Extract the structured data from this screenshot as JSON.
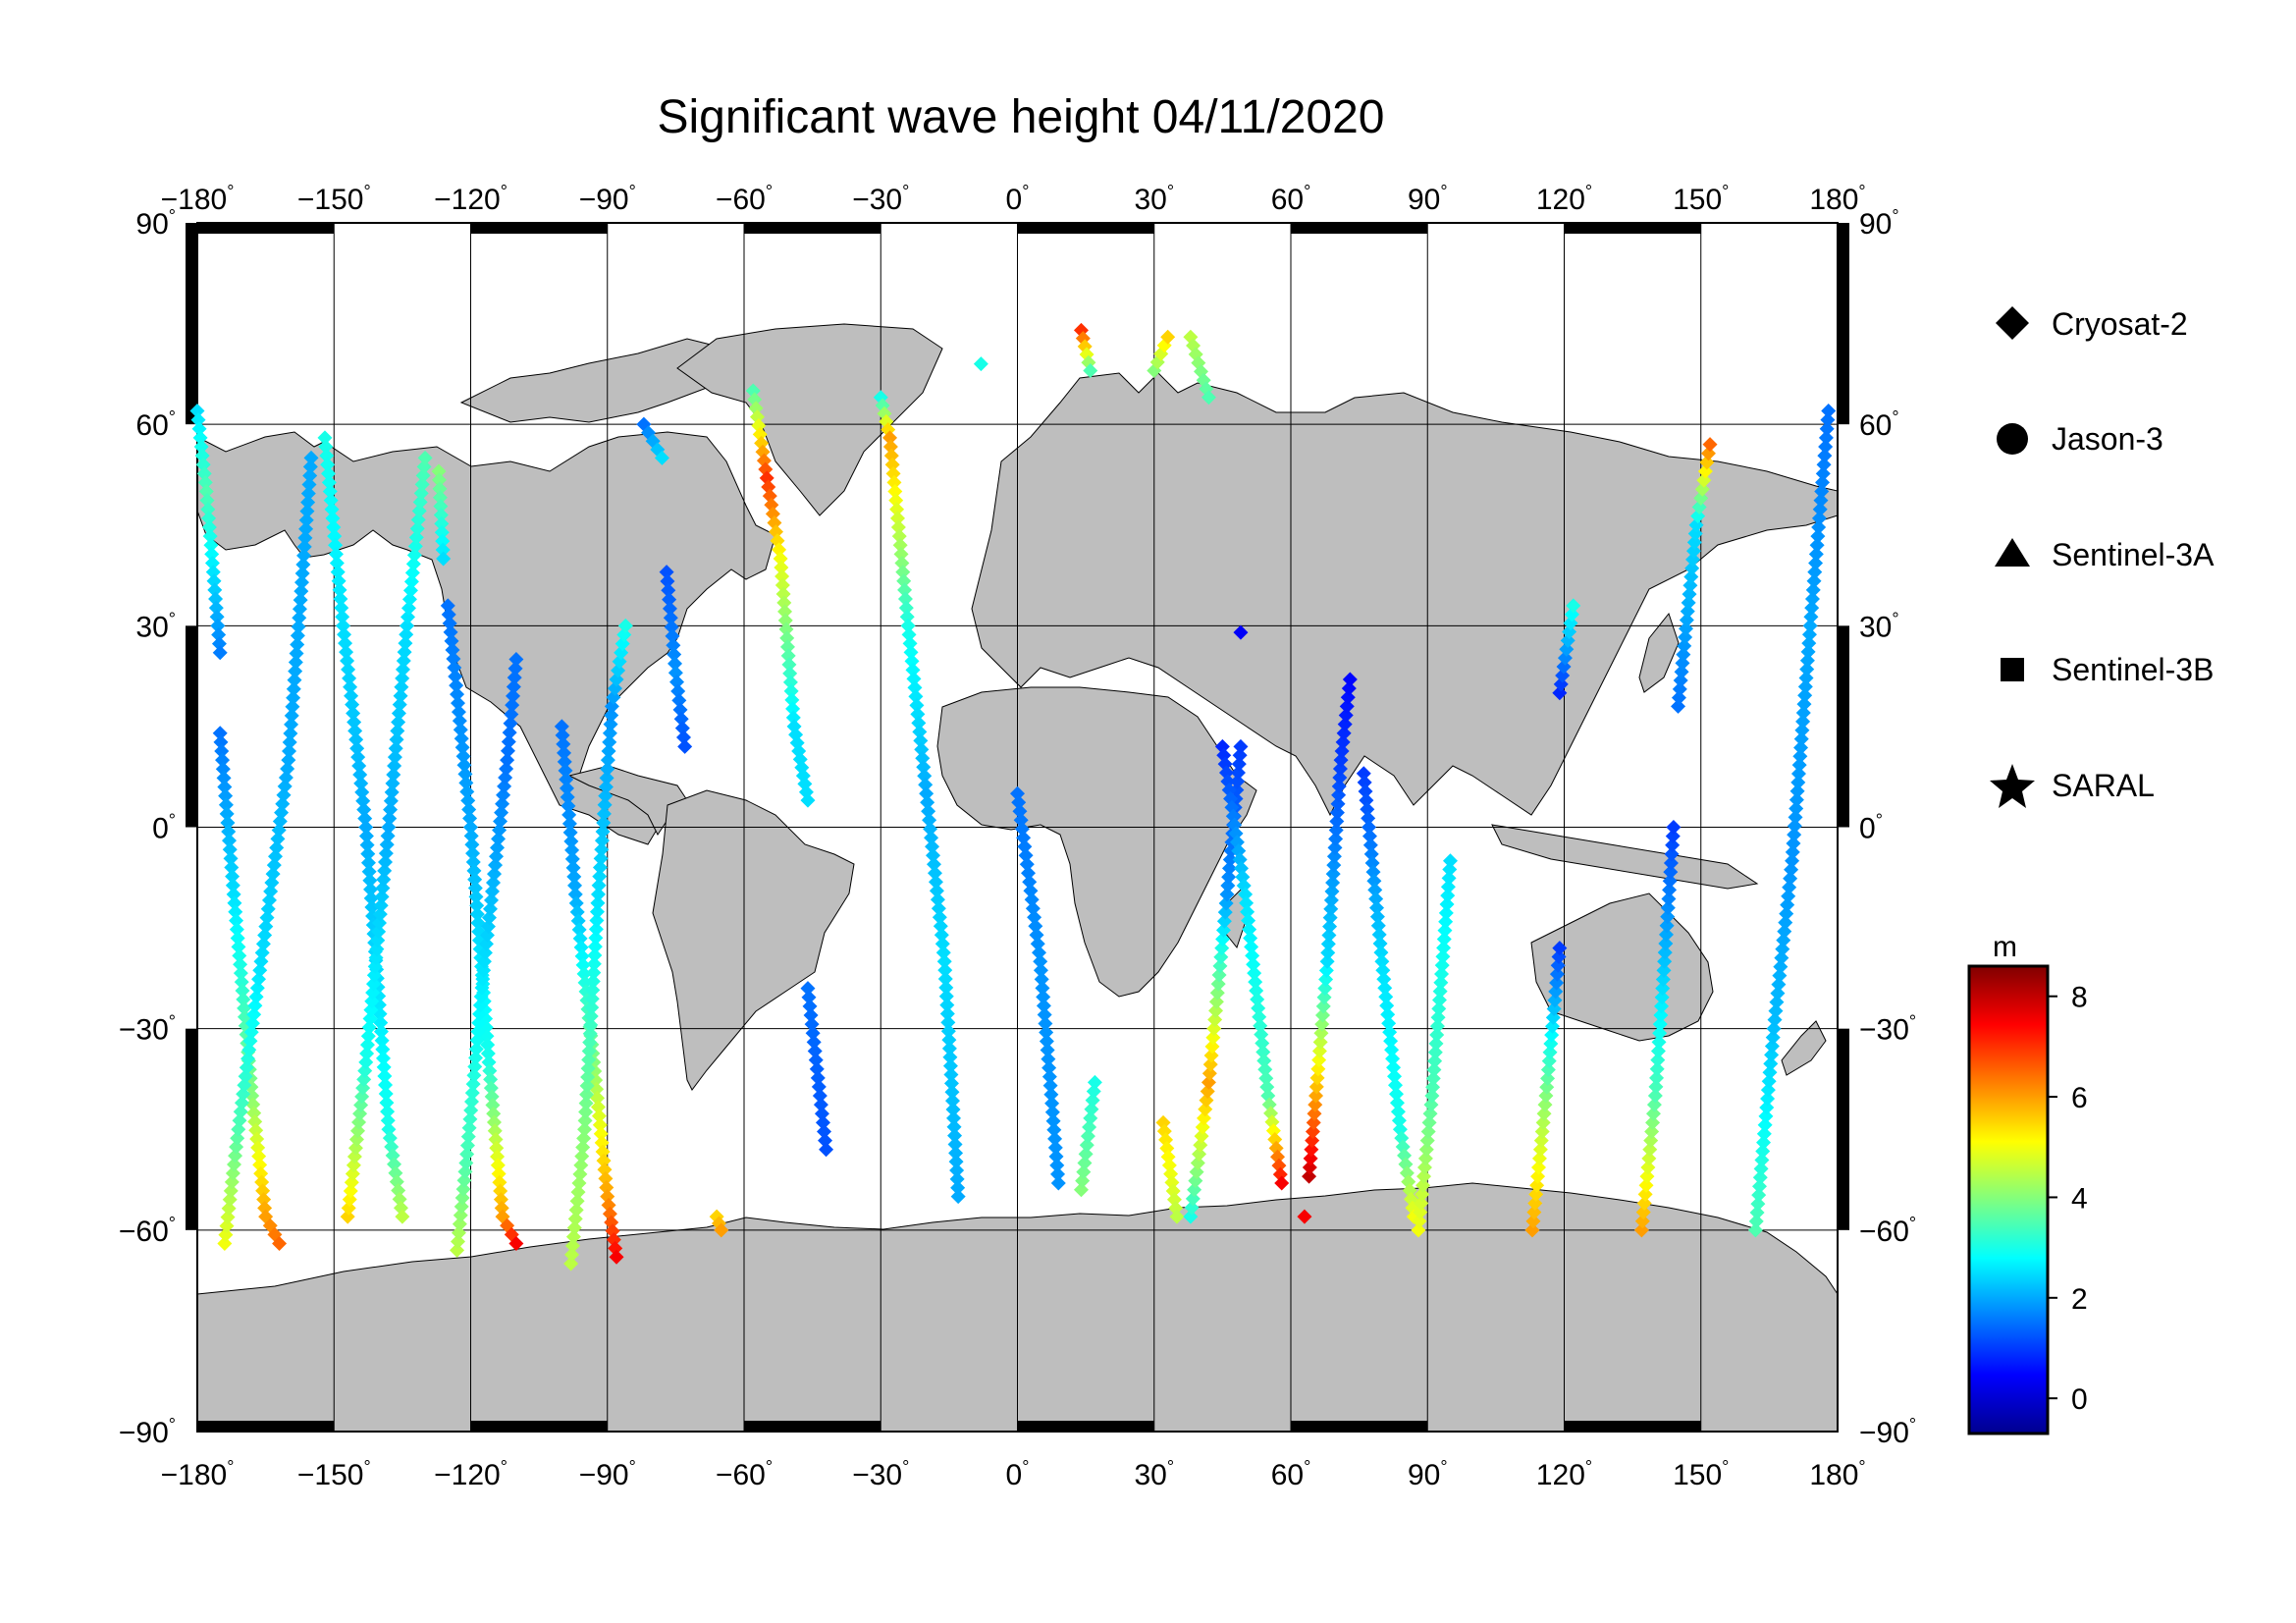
{
  "title": "Significant wave height 04/11/2020",
  "map": {
    "projection": "equirectangular",
    "lon_range": [
      -180,
      180
    ],
    "lat_range": [
      -90,
      90
    ],
    "lon_ticks": [
      "-180",
      "-150",
      "-120",
      "-90",
      "-60",
      "-30",
      "0",
      "30",
      "60",
      "90",
      "120",
      "150",
      "180"
    ],
    "lat_ticks": [
      "90",
      "60",
      "30",
      "0",
      "-30",
      "-60",
      "-90"
    ],
    "gridlines": true,
    "land_color": "#bebebe",
    "ocean_color": "#ffffff"
  },
  "legend": {
    "items": [
      {
        "label": "Cryosat-2",
        "marker": "diamond"
      },
      {
        "label": "Jason-3",
        "marker": "circle"
      },
      {
        "label": "Sentinel-3A",
        "marker": "triangle"
      },
      {
        "label": "Sentinel-3B",
        "marker": "square"
      },
      {
        "label": "SARAL",
        "marker": "star"
      }
    ]
  },
  "colorbar": {
    "unit": "m",
    "range": [
      -0.7,
      8.6
    ],
    "ticks": [
      "0",
      "2",
      "4",
      "6",
      "8"
    ],
    "colormap": "jet"
  },
  "tracks": [
    {
      "satellite": "Cryosat-2",
      "points": [
        [
          -180,
          62,
          2.5
        ],
        [
          -178,
          50,
          3.5
        ],
        [
          -175,
          26,
          1.6
        ]
      ]
    },
    {
      "satellite": "Cryosat-2",
      "points": [
        [
          -175,
          14,
          1.5
        ],
        [
          -172,
          -10,
          2.5
        ],
        [
          -168,
          -40,
          4
        ],
        [
          -165,
          -58,
          6
        ],
        [
          -162,
          -62,
          6.5
        ]
      ]
    },
    {
      "satellite": "Cryosat-2",
      "points": [
        [
          -174,
          -62,
          5
        ],
        [
          -171,
          -45,
          3.5
        ],
        [
          -166,
          -20,
          2.5
        ],
        [
          -160,
          10,
          2
        ],
        [
          -155,
          55,
          2
        ]
      ]
    },
    {
      "satellite": "Cryosat-2",
      "points": [
        [
          -152,
          58,
          3
        ],
        [
          -148,
          30,
          2.5
        ],
        [
          -143,
          0,
          2
        ],
        [
          -138,
          -45,
          3
        ],
        [
          -135,
          -58,
          4.5
        ]
      ]
    },
    {
      "satellite": "Cryosat-2",
      "points": [
        [
          -147,
          -58,
          5.5
        ],
        [
          -143,
          -35,
          3
        ],
        [
          -138,
          0,
          2
        ],
        [
          -134,
          30,
          2.5
        ],
        [
          -130,
          55,
          3.5
        ]
      ]
    },
    {
      "satellite": "Cryosat-2",
      "points": [
        [
          -127,
          53,
          4
        ],
        [
          -126,
          40,
          2.5
        ]
      ]
    },
    {
      "satellite": "Cryosat-2",
      "points": [
        [
          -125,
          33,
          1.5
        ],
        [
          -120,
          0,
          2
        ],
        [
          -116,
          -35,
          3
        ],
        [
          -113,
          -58,
          6
        ],
        [
          -110,
          -62,
          7.5
        ]
      ]
    },
    {
      "satellite": "Cryosat-2",
      "points": [
        [
          -123,
          -63,
          4.5
        ],
        [
          -121,
          -50,
          3.5
        ],
        [
          -117,
          -20,
          2.5
        ],
        [
          -112,
          10,
          1.5
        ],
        [
          -110,
          25,
          1.5
        ]
      ]
    },
    {
      "satellite": "Cryosat-2",
      "points": [
        [
          -100,
          15,
          1.5
        ],
        [
          -97,
          -10,
          2
        ],
        [
          -93,
          -35,
          4
        ],
        [
          -90,
          -55,
          6
        ],
        [
          -88,
          -64,
          7.5
        ]
      ]
    },
    {
      "satellite": "Cryosat-2",
      "points": [
        [
          -98,
          -65,
          4.5
        ],
        [
          -95,
          -45,
          4
        ],
        [
          -92,
          -10,
          2.5
        ],
        [
          -89,
          18,
          1.8
        ],
        [
          -86,
          30,
          3
        ]
      ]
    },
    {
      "satellite": "Cryosat-2",
      "points": [
        [
          -77,
          38,
          1.2
        ],
        [
          -75,
          23,
          1.8
        ],
        [
          -73,
          12,
          1.2
        ]
      ]
    },
    {
      "satellite": "Cryosat-2",
      "points": [
        [
          -58,
          65,
          3.5
        ],
        [
          -55,
          52,
          7
        ],
        [
          -52,
          40,
          5
        ],
        [
          -49,
          15,
          2.5
        ],
        [
          -46,
          4,
          2.5
        ]
      ]
    },
    {
      "satellite": "Cryosat-2",
      "points": [
        [
          -46,
          -24,
          1.5
        ],
        [
          -42,
          -48,
          1.2
        ]
      ]
    },
    {
      "satellite": "Cryosat-2",
      "points": [
        [
          -30,
          64,
          3
        ],
        [
          -28,
          58,
          6
        ],
        [
          -24,
          30,
          3
        ],
        [
          -20,
          5,
          2
        ],
        [
          -16,
          -20,
          2.5
        ],
        [
          -13,
          -55,
          2
        ]
      ]
    },
    {
      "satellite": "Cryosat-2",
      "points": [
        [
          -66,
          -58,
          5.5
        ],
        [
          -65,
          -60,
          6
        ]
      ]
    },
    {
      "satellite": "Cryosat-2",
      "points": [
        [
          -82,
          60,
          1.5
        ],
        [
          -78,
          55,
          2.5
        ]
      ]
    },
    {
      "satellite": "Cryosat-2",
      "points": [
        [
          0,
          5,
          1.5
        ],
        [
          5,
          -20,
          1.8
        ],
        [
          9,
          -53,
          1.8
        ]
      ]
    },
    {
      "satellite": "Cryosat-2",
      "points": [
        [
          14,
          -54,
          4
        ],
        [
          17,
          -38,
          3
        ]
      ]
    },
    {
      "satellite": "Cryosat-2",
      "points": [
        [
          14,
          74,
          7
        ],
        [
          16,
          68,
          3.5
        ]
      ]
    },
    {
      "satellite": "Cryosat-2",
      "points": [
        [
          30,
          68,
          4
        ],
        [
          33,
          73,
          5.5
        ]
      ]
    },
    {
      "satellite": "Cryosat-2",
      "points": [
        [
          38,
          73,
          4.5
        ],
        [
          42,
          64,
          3.5
        ]
      ]
    },
    {
      "satellite": "Cryosat-2",
      "points": [
        [
          -8,
          69,
          3
        ]
      ]
    },
    {
      "satellite": "Cryosat-2",
      "points": [
        [
          32,
          -44,
          5.5
        ],
        [
          35,
          -58,
          4.5
        ]
      ]
    },
    {
      "satellite": "Cryosat-2",
      "points": [
        [
          38,
          -58,
          3
        ],
        [
          42,
          -38,
          6
        ],
        [
          46,
          -10,
          1.8
        ],
        [
          49,
          12,
          1
        ]
      ]
    },
    {
      "satellite": "Cryosat-2",
      "points": [
        [
          45,
          12,
          0.8
        ],
        [
          50,
          -10,
          2.5
        ],
        [
          55,
          -40,
          3.5
        ],
        [
          58,
          -53,
          7.5
        ]
      ]
    },
    {
      "satellite": "Cryosat-2",
      "points": [
        [
          64,
          -52,
          8
        ],
        [
          68,
          -20,
          2.5
        ],
        [
          71,
          10,
          1
        ],
        [
          73,
          22,
          0.5
        ]
      ]
    },
    {
      "satellite": "Cryosat-2",
      "points": [
        [
          76,
          8,
          1
        ],
        [
          80,
          -20,
          2.5
        ],
        [
          84,
          -45,
          3
        ],
        [
          87,
          -58,
          5
        ]
      ]
    },
    {
      "satellite": "Cryosat-2",
      "points": [
        [
          88,
          -60,
          5
        ],
        [
          91,
          -40,
          3.5
        ],
        [
          95,
          -5,
          2.5
        ]
      ]
    },
    {
      "satellite": "Cryosat-2",
      "points": [
        [
          49,
          29,
          0.4
        ]
      ]
    },
    {
      "satellite": "Cryosat-2",
      "points": [
        [
          63,
          -58,
          7.5
        ]
      ]
    },
    {
      "satellite": "Cryosat-2",
      "points": [
        [
          113,
          -60,
          6
        ],
        [
          116,
          -40,
          4
        ],
        [
          119,
          -18,
          1
        ]
      ]
    },
    {
      "satellite": "Cryosat-2",
      "points": [
        [
          119,
          20,
          0.8
        ],
        [
          122,
          33,
          3
        ]
      ]
    },
    {
      "satellite": "Cryosat-2",
      "points": [
        [
          137,
          -60,
          6
        ],
        [
          140,
          -40,
          3.5
        ],
        [
          144,
          0,
          1
        ]
      ]
    },
    {
      "satellite": "Cryosat-2",
      "points": [
        [
          145,
          18,
          1.5
        ],
        [
          149,
          45,
          2.5
        ],
        [
          152,
          57,
          6.5
        ]
      ]
    },
    {
      "satellite": "Cryosat-2",
      "points": [
        [
          162,
          -60,
          3.5
        ],
        [
          166,
          -30,
          2.2
        ],
        [
          170,
          -5,
          1.8
        ],
        [
          174,
          30,
          2
        ],
        [
          178,
          62,
          1.5
        ]
      ]
    }
  ]
}
